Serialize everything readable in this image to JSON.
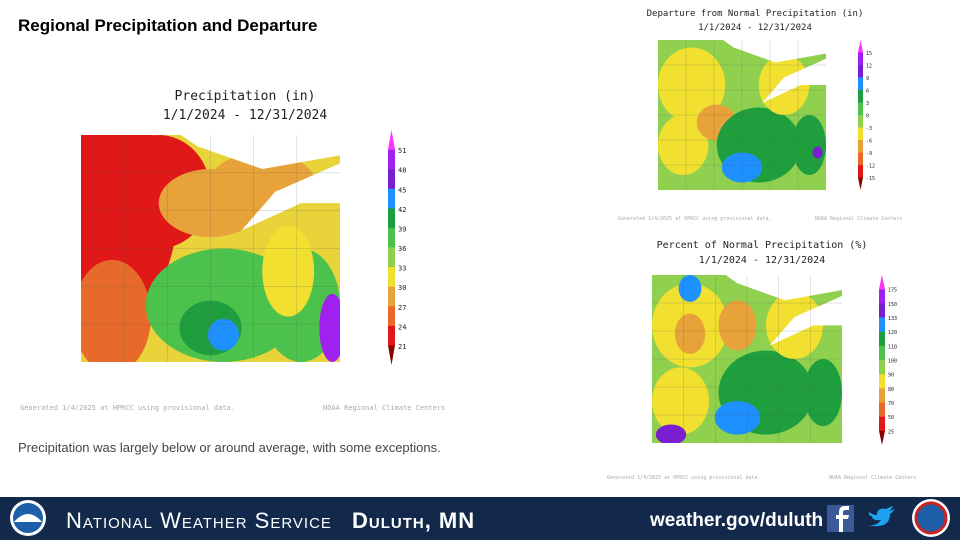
{
  "slide": {
    "title": "Regional Precipitation and Departure",
    "caption": "Precipitation was largely below or around average, with some exceptions."
  },
  "maps": [
    {
      "title": "Precipitation (in)",
      "period": "1/1/2024 - 12/31/2024",
      "legend": [
        "51",
        "48",
        "45",
        "42",
        "39",
        "36",
        "33",
        "30",
        "27",
        "24",
        "21"
      ],
      "credit_left": "Generated 1/4/2025 at HPRCC using provisional data.",
      "credit_right": "NOAA Regional Climate Centers"
    },
    {
      "title": "Departure from Normal Precipitation (in)",
      "period": "1/1/2024 - 12/31/2024",
      "legend": [
        "15",
        "12",
        "9",
        "6",
        "3",
        "0",
        "-3",
        "-6",
        "-9",
        "-12",
        "-15"
      ],
      "credit_left": "Generated 1/4/2025 at HPRCC using provisional data.",
      "credit_right": "NOAA Regional Climate Centers"
    },
    {
      "title": "Percent of Normal Precipitation (%)",
      "period": "1/1/2024 - 12/31/2024",
      "legend": [
        "175",
        "150",
        "133",
        "120",
        "110",
        "100",
        "90",
        "80",
        "70",
        "50",
        "25"
      ],
      "credit_left": "Generated 1/4/2025 at HPRCC using provisional data.",
      "credit_right": "NOAA Regional Climate Centers"
    }
  ],
  "footer": {
    "agency": "National Weather Service",
    "office": "Duluth, MN",
    "url": "weather.gov/duluth"
  }
}
